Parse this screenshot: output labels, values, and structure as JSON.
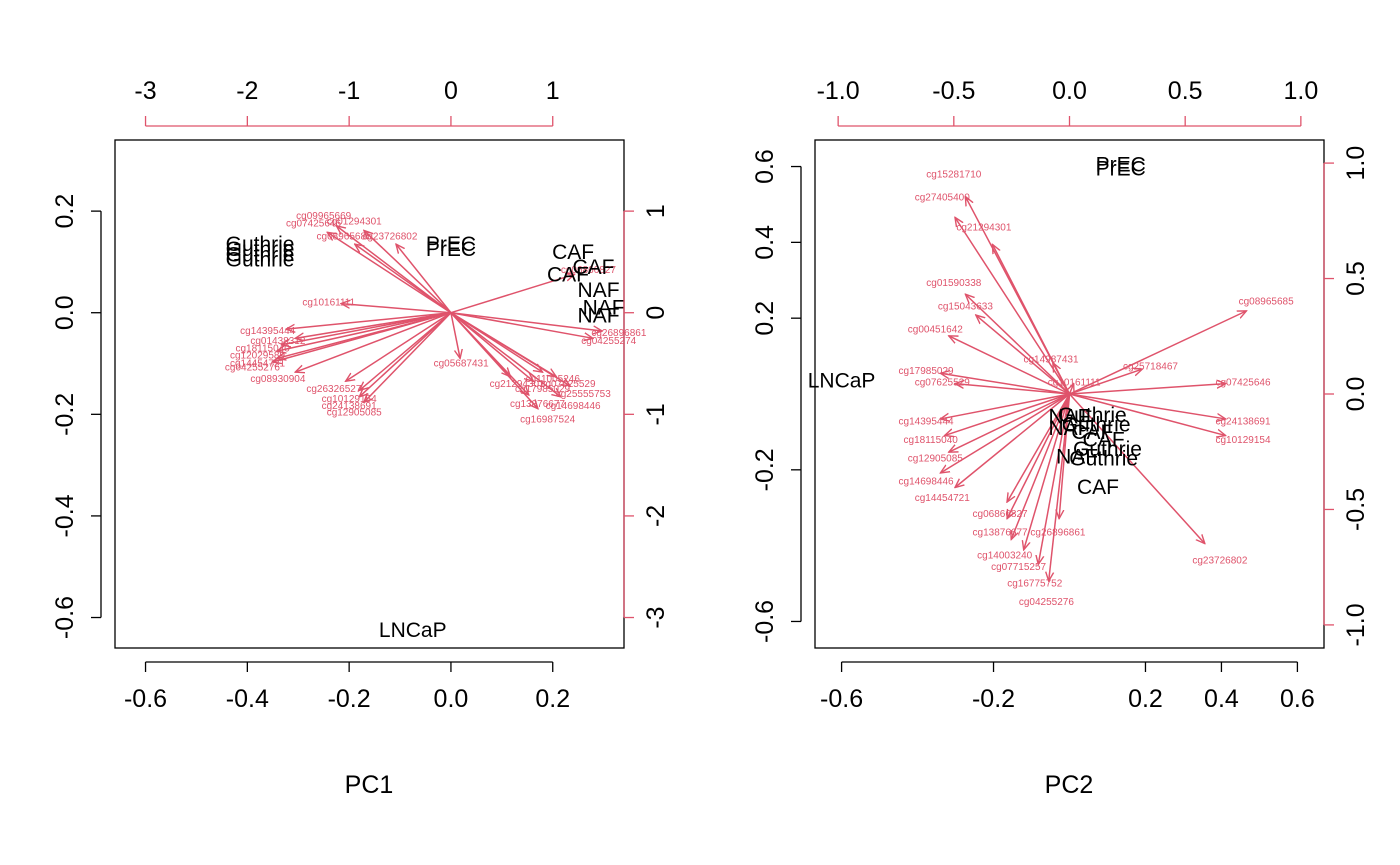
{
  "colors": {
    "arrow": "#df536b",
    "observation": "#000000",
    "axis": "#000000"
  },
  "chart_data": [
    {
      "type": "scatter",
      "title": "",
      "xlabel": "PC1",
      "ylabel": "",
      "xlim": [
        -0.66,
        0.34
      ],
      "ylim": [
        -0.66,
        0.34
      ],
      "xticks": [
        -0.6,
        -0.4,
        -0.2,
        0.0,
        0.2
      ],
      "xtick_labels": [
        "-0.6",
        "-0.4",
        "-0.2",
        "0.0",
        "0.2"
      ],
      "yticks": [
        -0.6,
        -0.4,
        -0.2,
        0.0,
        0.2
      ],
      "ytick_labels": [
        "-0.6",
        "-0.4",
        "-0.2",
        "0.0",
        "0.2"
      ],
      "var_lim": [
        -3.3,
        1.7
      ],
      "top_ticks": [
        -3,
        -2,
        -1,
        0,
        1
      ],
      "top_tick_labels": [
        "-3",
        "-2",
        "-1",
        "0",
        "1"
      ],
      "right_ticks": [
        -3,
        -2,
        -1,
        0,
        1
      ],
      "right_tick_labels": [
        "-3",
        "-2",
        "-1",
        "0",
        "1"
      ],
      "observations": [
        {
          "label": "PrEC",
          "x": 0.0,
          "y": 0.135
        },
        {
          "label": "PrEC",
          "x": 0.0,
          "y": 0.125
        },
        {
          "label": "CAF",
          "x": 0.24,
          "y": 0.12
        },
        {
          "label": "CAF",
          "x": 0.28,
          "y": 0.09
        },
        {
          "label": "CAF",
          "x": 0.23,
          "y": 0.075
        },
        {
          "label": "NAF",
          "x": 0.29,
          "y": 0.045
        },
        {
          "label": "NAF",
          "x": 0.3,
          "y": 0.01
        },
        {
          "label": "NAF",
          "x": 0.29,
          "y": -0.005
        },
        {
          "label": "Guthrie",
          "x": -0.375,
          "y": 0.135
        },
        {
          "label": "Guthrie",
          "x": -0.375,
          "y": 0.125
        },
        {
          "label": "Guthrie",
          "x": -0.375,
          "y": 0.115
        },
        {
          "label": "Guthrie",
          "x": -0.375,
          "y": 0.105
        },
        {
          "label": "LNCaP",
          "x": -0.075,
          "y": -0.625
        }
      ],
      "loadings": [
        {
          "label": "cg09965669",
          "x": -1.25,
          "y": 0.95
        },
        {
          "label": "cg07425646",
          "x": -1.35,
          "y": 0.88
        },
        {
          "label": "cg01294301",
          "x": -0.95,
          "y": 0.9
        },
        {
          "label": "cg23726802",
          "x": -0.6,
          "y": 0.75
        },
        {
          "label": "cg08965685",
          "x": -1.05,
          "y": 0.75
        },
        {
          "label": "cg10161111",
          "x": -1.2,
          "y": 0.1
        },
        {
          "label": "cg14395444",
          "x": -1.8,
          "y": -0.18
        },
        {
          "label": "cg01438312",
          "x": -1.7,
          "y": -0.28
        },
        {
          "label": "cg18115040",
          "x": -1.85,
          "y": -0.35
        },
        {
          "label": "cg12029589",
          "x": -1.9,
          "y": -0.42
        },
        {
          "label": "cg14454721",
          "x": -1.9,
          "y": -0.5
        },
        {
          "label": "cg04255276",
          "x": -1.95,
          "y": -0.54
        },
        {
          "label": "cg08930904",
          "x": -1.7,
          "y": -0.65
        },
        {
          "label": "cg26326527",
          "x": -1.15,
          "y": -0.75
        },
        {
          "label": "cg10129154",
          "x": -1.0,
          "y": -0.85
        },
        {
          "label": "cg24138691",
          "x": -1.0,
          "y": -0.92
        },
        {
          "label": "cg12905085",
          "x": -0.95,
          "y": -0.98
        },
        {
          "label": "cg05687431",
          "x": 0.1,
          "y": -0.5
        },
        {
          "label": "cg21294301",
          "x": 0.65,
          "y": -0.7
        },
        {
          "label": "cg17985029",
          "x": 0.9,
          "y": -0.75
        },
        {
          "label": "cg11005246",
          "x": 1.0,
          "y": -0.65
        },
        {
          "label": "cg25555753",
          "x": 1.3,
          "y": -0.8
        },
        {
          "label": "cg07625529",
          "x": 1.15,
          "y": -0.7
        },
        {
          "label": "cg16987524",
          "x": 0.95,
          "y": -1.05
        },
        {
          "label": "cg13876677",
          "x": 0.85,
          "y": -0.9
        },
        {
          "label": "cg14698446",
          "x": 1.2,
          "y": -0.92
        },
        {
          "label": "cg26896861",
          "x": 1.65,
          "y": -0.2
        },
        {
          "label": "cg04255274",
          "x": 1.55,
          "y": -0.28
        },
        {
          "label": "cg06866827",
          "x": 1.35,
          "y": 0.42
        }
      ]
    },
    {
      "type": "scatter",
      "title": "",
      "xlabel": "PC2",
      "ylabel": "",
      "xlim": [
        -0.67,
        0.67
      ],
      "ylim": [
        -0.67,
        0.67
      ],
      "xticks": [
        -0.6,
        -0.2,
        0.2,
        0.4,
        0.6
      ],
      "xtick_labels": [
        "-0.6",
        "-0.2",
        "0.2",
        "0.4",
        "0.6"
      ],
      "yticks": [
        -0.6,
        -0.2,
        0.2,
        0.4,
        0.6
      ],
      "ytick_labels": [
        "-0.6",
        "-0.2",
        "0.2",
        "0.4",
        "0.6"
      ],
      "var_lim": [
        -1.1,
        1.1
      ],
      "top_ticks": [
        -1.0,
        -0.5,
        0.0,
        0.5,
        1.0
      ],
      "top_tick_labels": [
        "-1.0",
        "-0.5",
        "0.0",
        "0.5",
        "1.0"
      ],
      "right_ticks": [
        -1.0,
        -0.5,
        0.0,
        0.5,
        1.0
      ],
      "right_tick_labels": [
        "-1.0",
        "-0.5",
        "0.0",
        "0.5",
        "1.0"
      ],
      "observations": [
        {
          "label": "PrEC",
          "x": 0.135,
          "y": 0.605
        },
        {
          "label": "PrEC",
          "x": 0.135,
          "y": 0.595
        },
        {
          "label": "LNCaP",
          "x": -0.6,
          "y": 0.035
        },
        {
          "label": "NAF",
          "x": 0.0,
          "y": -0.06
        },
        {
          "label": "NAF",
          "x": 0.0,
          "y": -0.09
        },
        {
          "label": "Guthrie",
          "x": 0.06,
          "y": -0.055
        },
        {
          "label": "Guthrie",
          "x": 0.07,
          "y": -0.08
        },
        {
          "label": "CAF",
          "x": 0.06,
          "y": -0.1
        },
        {
          "label": "CAF",
          "x": 0.09,
          "y": -0.12
        },
        {
          "label": "Guthrie",
          "x": 0.1,
          "y": -0.145
        },
        {
          "label": "NAF",
          "x": 0.02,
          "y": -0.165
        },
        {
          "label": "Guthrie",
          "x": 0.09,
          "y": -0.17
        },
        {
          "label": "CAF",
          "x": 0.075,
          "y": -0.245
        }
      ],
      "loadings": [
        {
          "label": "cg15281710",
          "x": -0.5,
          "y": 0.95
        },
        {
          "label": "cg27405400",
          "x": -0.55,
          "y": 0.85
        },
        {
          "label": "cg21294301",
          "x": -0.37,
          "y": 0.72
        },
        {
          "label": "cg01590338",
          "x": -0.5,
          "y": 0.48
        },
        {
          "label": "cg15043633",
          "x": -0.45,
          "y": 0.38
        },
        {
          "label": "cg00451642",
          "x": -0.58,
          "y": 0.28
        },
        {
          "label": "cg17985029",
          "x": -0.62,
          "y": 0.1
        },
        {
          "label": "cg07625529",
          "x": -0.55,
          "y": 0.05
        },
        {
          "label": "cg14395444",
          "x": -0.62,
          "y": -0.12
        },
        {
          "label": "cg18115040",
          "x": -0.6,
          "y": -0.2
        },
        {
          "label": "cg12905085",
          "x": -0.58,
          "y": -0.28
        },
        {
          "label": "cg14698446",
          "x": -0.62,
          "y": -0.38
        },
        {
          "label": "cg14454721",
          "x": -0.55,
          "y": -0.45
        },
        {
          "label": "cg06866827",
          "x": -0.3,
          "y": -0.52
        },
        {
          "label": "cg13876677",
          "x": -0.3,
          "y": -0.6
        },
        {
          "label": "cg14003240",
          "x": -0.28,
          "y": -0.7
        },
        {
          "label": "cg07715257",
          "x": -0.22,
          "y": -0.75
        },
        {
          "label": "cg16775752",
          "x": -0.15,
          "y": -0.82
        },
        {
          "label": "cg04255276",
          "x": -0.1,
          "y": -0.9
        },
        {
          "label": "cg26896861",
          "x": -0.05,
          "y": -0.6
        },
        {
          "label": "cg08965685",
          "x": 0.85,
          "y": 0.4
        },
        {
          "label": "cg25718467",
          "x": 0.35,
          "y": 0.12
        },
        {
          "label": "cg07425646",
          "x": 0.75,
          "y": 0.05
        },
        {
          "label": "cg24138691",
          "x": 0.75,
          "y": -0.12
        },
        {
          "label": "cg10129154",
          "x": 0.75,
          "y": -0.2
        },
        {
          "label": "cg23726802",
          "x": 0.65,
          "y": -0.72
        },
        {
          "label": "cg10161111",
          "x": 0.02,
          "y": 0.05
        },
        {
          "label": "cg14987431",
          "x": -0.08,
          "y": 0.15
        }
      ]
    }
  ]
}
